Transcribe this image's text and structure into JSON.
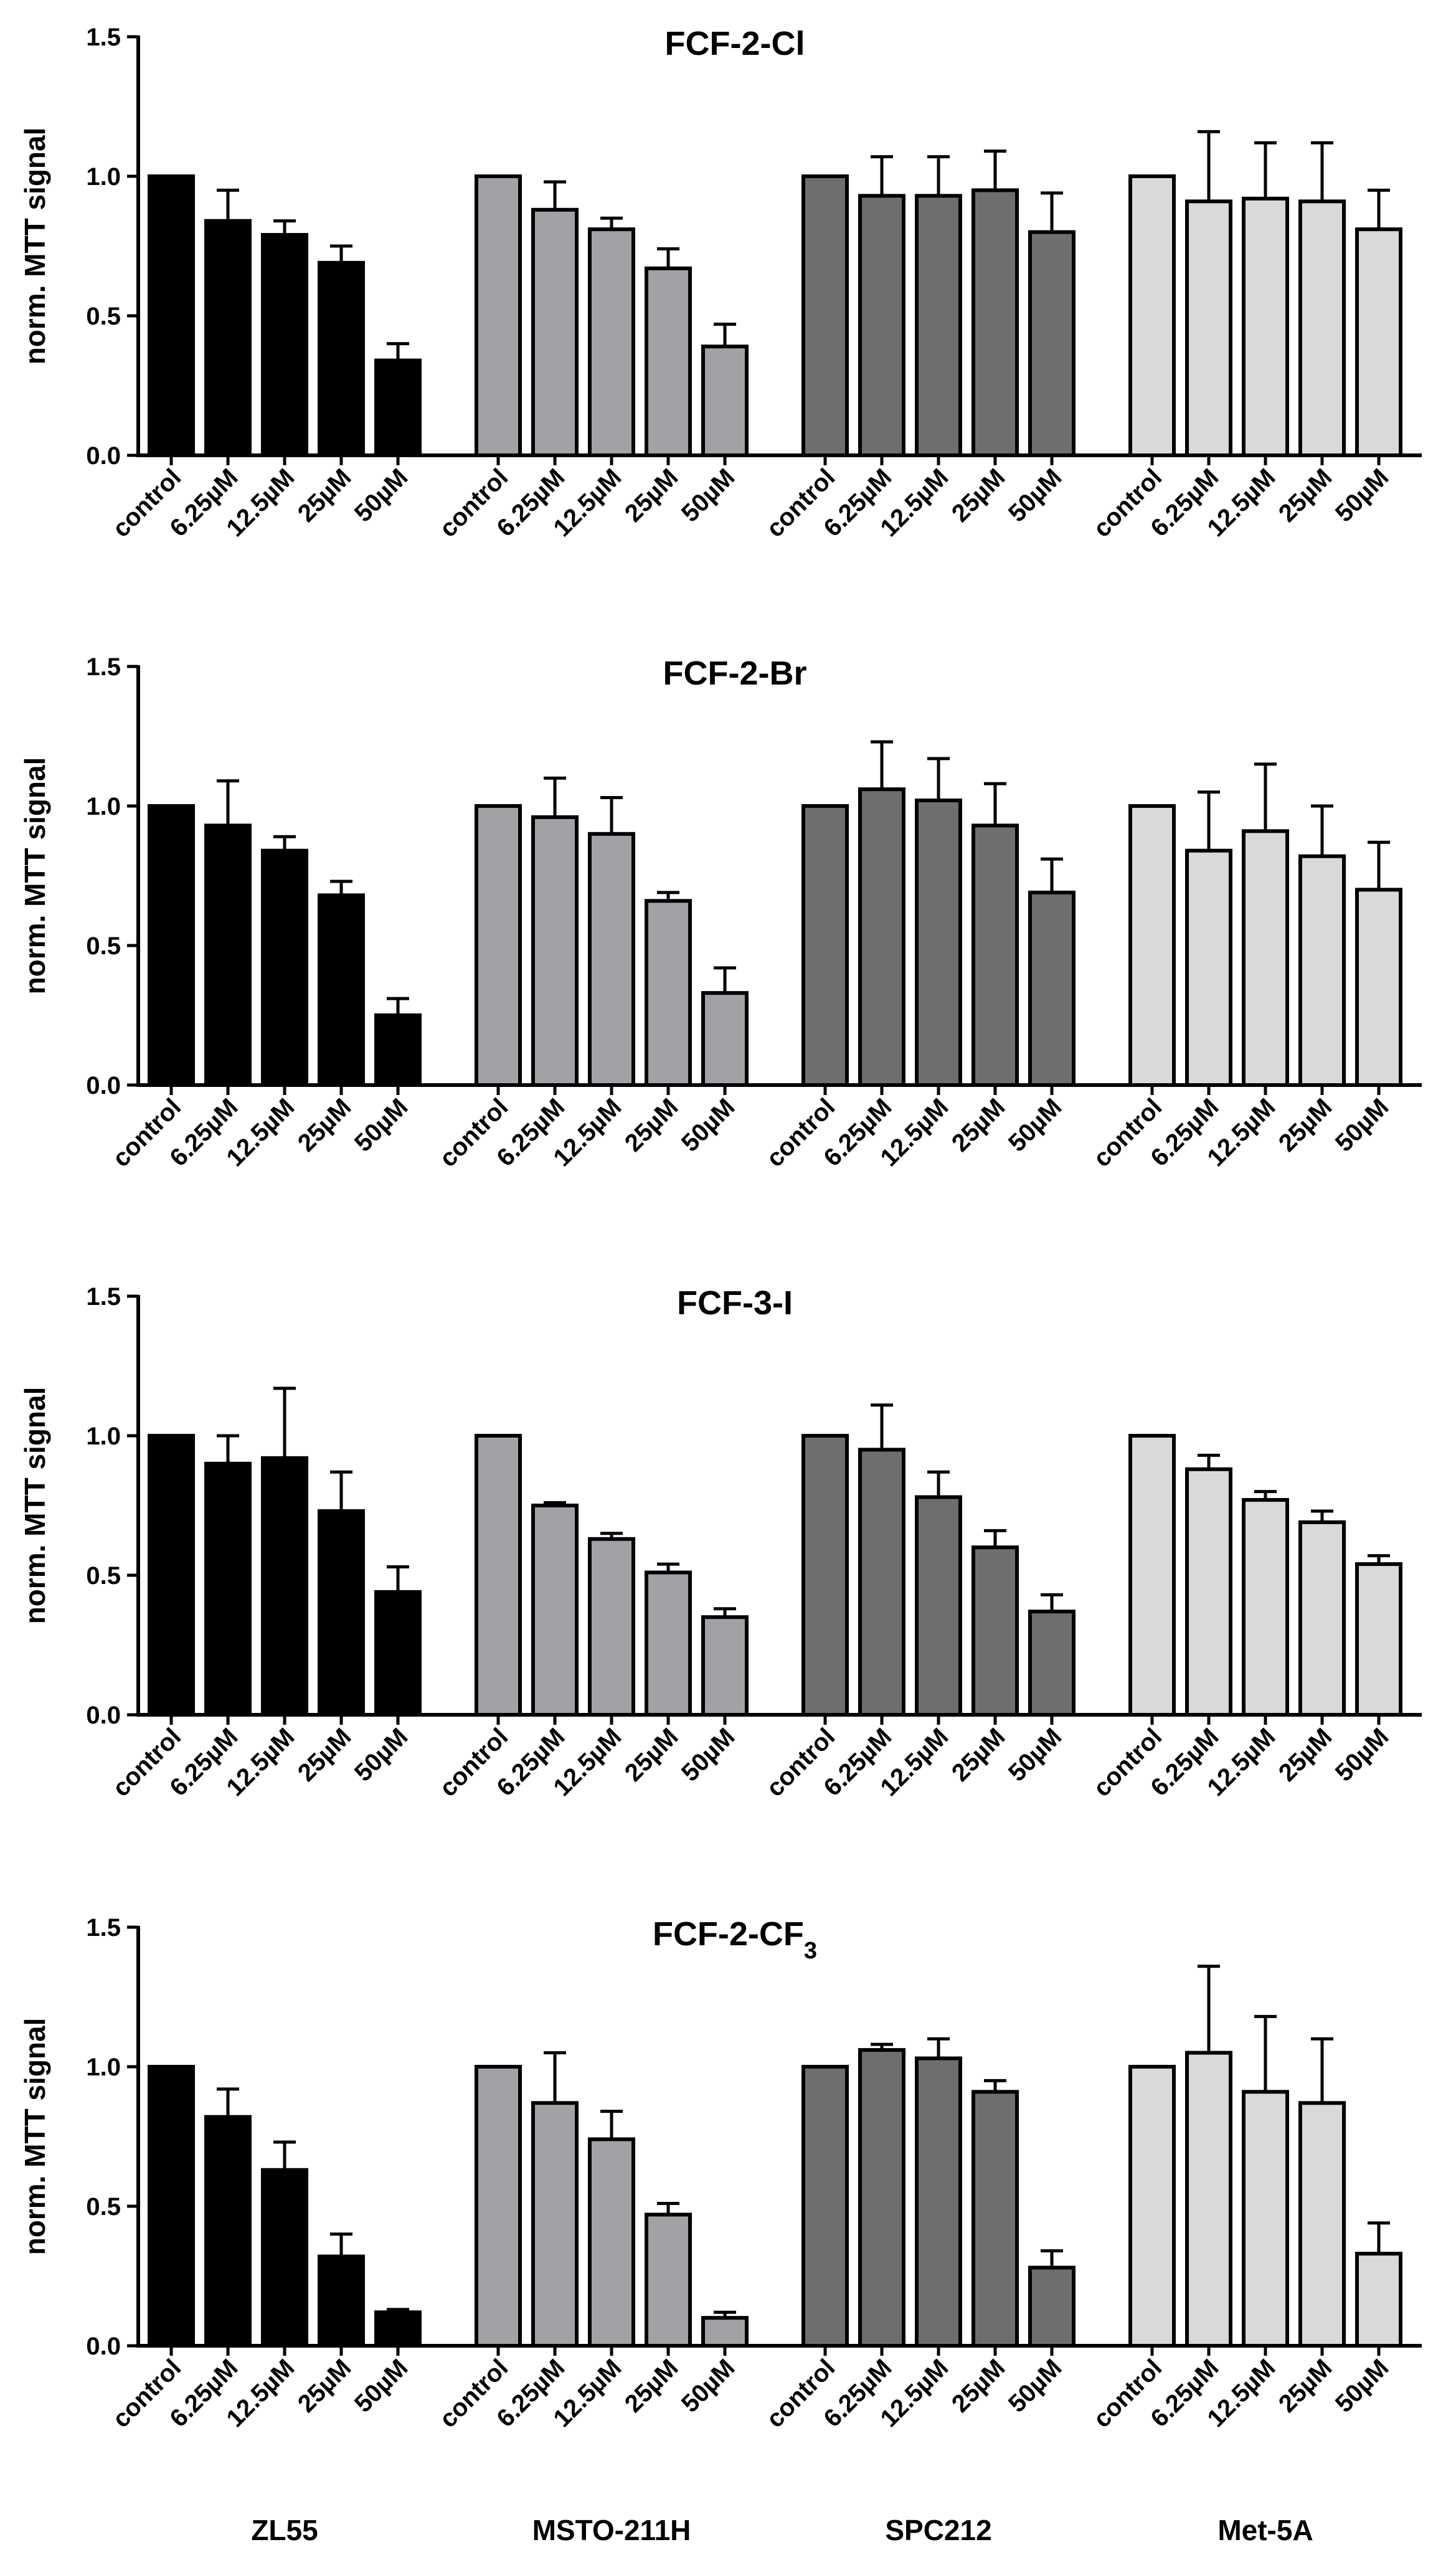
{
  "chart_data": [
    {
      "type": "bar",
      "title": "FCF-2-Cl",
      "title_sub": "",
      "ylabel": "norm. MTT signal",
      "ylim": [
        0,
        1.5
      ],
      "yticks": [
        "0.0",
        "0.5",
        "1.0",
        "1.5"
      ],
      "groups": [
        {
          "name": "ZL55",
          "color": "#000000",
          "categories": [
            "control",
            "6.25µM",
            "12.5µM",
            "25µM",
            "50µM"
          ],
          "values": [
            1.0,
            0.84,
            0.79,
            0.69,
            0.34
          ],
          "errors": [
            0,
            0.11,
            0.05,
            0.06,
            0.06
          ]
        },
        {
          "name": "MSTO-211H",
          "color": "#a2a2a6",
          "categories": [
            "control",
            "6.25µM",
            "12.5µM",
            "25µM",
            "50µM"
          ],
          "values": [
            1.0,
            0.88,
            0.81,
            0.67,
            0.39
          ],
          "errors": [
            0,
            0.1,
            0.04,
            0.07,
            0.08
          ]
        },
        {
          "name": "SPC212",
          "color": "#6e6e6e",
          "categories": [
            "control",
            "6.25µM",
            "12.5µM",
            "25µM",
            "50µM"
          ],
          "values": [
            1.0,
            0.93,
            0.93,
            0.95,
            0.8
          ],
          "errors": [
            0,
            0.14,
            0.14,
            0.14,
            0.14
          ]
        },
        {
          "name": "Met-5A",
          "color": "#d9d9d9",
          "categories": [
            "control",
            "6.25µM",
            "12.5µM",
            "25µM",
            "50µM"
          ],
          "values": [
            1.0,
            0.91,
            0.92,
            0.91,
            0.81
          ],
          "errors": [
            0,
            0.25,
            0.2,
            0.21,
            0.14
          ]
        }
      ]
    },
    {
      "type": "bar",
      "title": "FCF-2-Br",
      "title_sub": "",
      "ylabel": "norm. MTT signal",
      "ylim": [
        0,
        1.5
      ],
      "yticks": [
        "0.0",
        "0.5",
        "1.0",
        "1.5"
      ],
      "groups": [
        {
          "name": "ZL55",
          "color": "#000000",
          "categories": [
            "control",
            "6.25µM",
            "12.5µM",
            "25µM",
            "50µM"
          ],
          "values": [
            1.0,
            0.93,
            0.84,
            0.68,
            0.25
          ],
          "errors": [
            0,
            0.16,
            0.05,
            0.05,
            0.06
          ]
        },
        {
          "name": "MSTO-211H",
          "color": "#a2a2a6",
          "categories": [
            "control",
            "6.25µM",
            "12.5µM",
            "25µM",
            "50µM"
          ],
          "values": [
            1.0,
            0.96,
            0.9,
            0.66,
            0.33
          ],
          "errors": [
            0,
            0.14,
            0.13,
            0.03,
            0.09
          ]
        },
        {
          "name": "SPC212",
          "color": "#6e6e6e",
          "categories": [
            "control",
            "6.25µM",
            "12.5µM",
            "25µM",
            "50µM"
          ],
          "values": [
            1.0,
            1.06,
            1.02,
            0.93,
            0.69
          ],
          "errors": [
            0,
            0.17,
            0.15,
            0.15,
            0.12
          ]
        },
        {
          "name": "Met-5A",
          "color": "#d9d9d9",
          "categories": [
            "control",
            "6.25µM",
            "12.5µM",
            "25µM",
            "50µM"
          ],
          "values": [
            1.0,
            0.84,
            0.91,
            0.82,
            0.7
          ],
          "errors": [
            0,
            0.21,
            0.24,
            0.18,
            0.17
          ]
        }
      ]
    },
    {
      "type": "bar",
      "title": "FCF-3-I",
      "title_sub": "",
      "ylabel": "norm. MTT signal",
      "ylim": [
        0,
        1.5
      ],
      "yticks": [
        "0.0",
        "0.5",
        "1.0",
        "1.5"
      ],
      "groups": [
        {
          "name": "ZL55",
          "color": "#000000",
          "categories": [
            "control",
            "6.25µM",
            "12.5µM",
            "25µM",
            "50µM"
          ],
          "values": [
            1.0,
            0.9,
            0.92,
            0.73,
            0.44
          ],
          "errors": [
            0,
            0.1,
            0.25,
            0.14,
            0.09
          ]
        },
        {
          "name": "MSTO-211H",
          "color": "#a2a2a6",
          "categories": [
            "control",
            "6.25µM",
            "12.5µM",
            "25µM",
            "50µM"
          ],
          "values": [
            1.0,
            0.75,
            0.63,
            0.51,
            0.35
          ],
          "errors": [
            0,
            0.01,
            0.02,
            0.03,
            0.03
          ]
        },
        {
          "name": "SPC212",
          "color": "#6e6e6e",
          "categories": [
            "control",
            "6.25µM",
            "12.5µM",
            "25µM",
            "50µM"
          ],
          "values": [
            1.0,
            0.95,
            0.78,
            0.6,
            0.37
          ],
          "errors": [
            0,
            0.16,
            0.09,
            0.06,
            0.06
          ]
        },
        {
          "name": "Met-5A",
          "color": "#d9d9d9",
          "categories": [
            "control",
            "6.25µM",
            "12.5µM",
            "25µM",
            "50µM"
          ],
          "values": [
            1.0,
            0.88,
            0.77,
            0.69,
            0.54
          ],
          "errors": [
            0,
            0.05,
            0.03,
            0.04,
            0.03
          ]
        }
      ]
    },
    {
      "type": "bar",
      "title": "FCF-2-CF",
      "title_sub": "3",
      "ylabel": "norm. MTT signal",
      "ylim": [
        0,
        1.5
      ],
      "yticks": [
        "0.0",
        "0.5",
        "1.0",
        "1.5"
      ],
      "groups": [
        {
          "name": "ZL55",
          "color": "#000000",
          "categories": [
            "control",
            "6.25µM",
            "12.5µM",
            "25µM",
            "50µM"
          ],
          "values": [
            1.0,
            0.82,
            0.63,
            0.32,
            0.12
          ],
          "errors": [
            0,
            0.1,
            0.1,
            0.08,
            0.01
          ]
        },
        {
          "name": "MSTO-211H",
          "color": "#a2a2a6",
          "categories": [
            "control",
            "6.25µM",
            "12.5µM",
            "25µM",
            "50µM"
          ],
          "values": [
            1.0,
            0.87,
            0.74,
            0.47,
            0.1
          ],
          "errors": [
            0,
            0.18,
            0.1,
            0.04,
            0.02
          ]
        },
        {
          "name": "SPC212",
          "color": "#6e6e6e",
          "categories": [
            "control",
            "6.25µM",
            "12.5µM",
            "25µM",
            "50µM"
          ],
          "values": [
            1.0,
            1.06,
            1.03,
            0.91,
            0.28
          ],
          "errors": [
            0,
            0.02,
            0.07,
            0.04,
            0.06
          ]
        },
        {
          "name": "Met-5A",
          "color": "#d9d9d9",
          "categories": [
            "control",
            "6.25µM",
            "12.5µM",
            "25µM",
            "50µM"
          ],
          "values": [
            1.0,
            1.05,
            0.91,
            0.87,
            0.33
          ],
          "errors": [
            0,
            0.31,
            0.27,
            0.23,
            0.11
          ]
        }
      ]
    }
  ]
}
